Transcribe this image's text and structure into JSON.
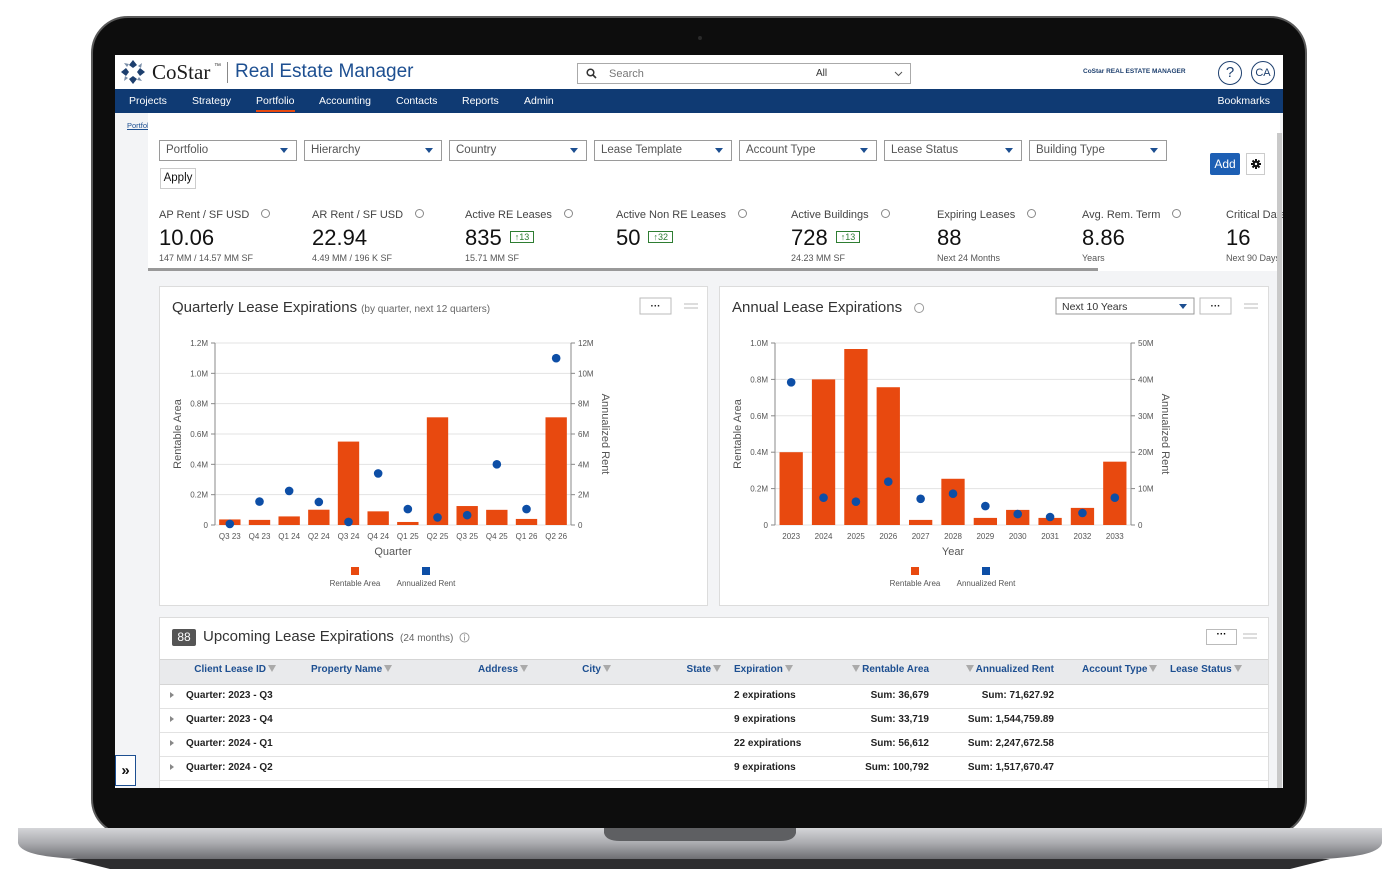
{
  "header": {
    "brand": "CoStar",
    "brand_tm": "™",
    "product": "Real Estate Manager",
    "search_placeholder": "Search",
    "search_scope": "All",
    "logo_small": "CoStar REAL ESTATE MANAGER",
    "help": "?",
    "avatar": "CA"
  },
  "nav": {
    "items": [
      "Projects",
      "Strategy",
      "Portfolio",
      "Accounting",
      "Contacts",
      "Reports",
      "Admin"
    ],
    "active": 2,
    "right": "Bookmarks"
  },
  "breadcrumb": "Portfolio Home",
  "filters": {
    "items": [
      "Portfolio",
      "Hierarchy",
      "Country",
      "Lease Template",
      "Account Type",
      "Lease Status",
      "Building Type"
    ],
    "apply": "Apply",
    "add": "Add"
  },
  "kpis": [
    {
      "label": "AP Rent / SF USD",
      "value": 10.06,
      "sub": "147 MM / 14.57 MM SF"
    },
    {
      "label": "AR Rent / SF USD",
      "value": 22.94,
      "sub": "4.49 MM / 196 K SF"
    },
    {
      "label": "Active RE Leases",
      "value": 835,
      "badge": "↑13",
      "sub": "15.71 MM SF"
    },
    {
      "label": "Active Non RE Leases",
      "value": 50,
      "badge": "↑32"
    },
    {
      "label": "Active Buildings",
      "value": 728,
      "badge": "↑13",
      "sub": "24.23 MM SF"
    },
    {
      "label": "Expiring Leases",
      "value": 88,
      "sub": "Next 24 Months"
    },
    {
      "label": "Avg. Rem. Term",
      "value": 8.86,
      "sub": "Years"
    },
    {
      "label": "Critical Dates",
      "value": 16,
      "sub": "Next 90 Days"
    }
  ],
  "chart_data": [
    {
      "type": "bar",
      "title": "Quarterly Lease Expirations",
      "subtitle": "(by quarter, next 12 quarters)",
      "x_label": "Quarter",
      "y_label": "Rentable Area",
      "y2_label": "Annualized Rent",
      "categories": [
        "Q3 23",
        "Q4 23",
        "Q1 24",
        "Q2 24",
        "Q3 24",
        "Q4 24",
        "Q1 25",
        "Q2 25",
        "Q3 25",
        "Q4 25",
        "Q1 26",
        "Q2 26"
      ],
      "series": [
        {
          "name": "Rentable Area",
          "type": "bar",
          "color": "#e8490f",
          "values": [
            36679,
            33719,
            56612,
            100792,
            550000,
            90000,
            20000,
            710000,
            125000,
            100000,
            40000,
            710000
          ]
        },
        {
          "name": "Annualized Rent",
          "type": "scatter",
          "color": "#0d4ea6",
          "axis": "y2",
          "values": [
            71627.92,
            1544759.89,
            2247672.58,
            1517670.47,
            200000,
            3400000,
            1050000,
            500000,
            650000,
            4000000,
            1050000,
            11000000
          ]
        }
      ],
      "ylim": [
        0,
        1200000
      ],
      "yticks": [
        0,
        {
          "value": 200000,
          "label": "0.2M"
        },
        {
          "value": 400000,
          "label": "0.4M"
        },
        {
          "value": 600000,
          "label": "0.6M"
        },
        {
          "value": 800000,
          "label": "0.8M"
        },
        {
          "value": 1000000,
          "label": "1.0M"
        },
        {
          "value": 1200000,
          "label": "1.2M"
        }
      ],
      "y2lim": [
        0,
        12000000
      ],
      "y2ticks": [
        0,
        {
          "value": 2000000,
          "label": "2M"
        },
        {
          "value": 4000000,
          "label": "4M"
        },
        {
          "value": 6000000,
          "label": "6M"
        },
        {
          "value": 8000000,
          "label": "8M"
        },
        {
          "value": 10000000,
          "label": "10M"
        },
        {
          "value": 12000000,
          "label": "12M"
        }
      ],
      "grid": true
    },
    {
      "type": "bar",
      "title": "Annual Lease Expirations",
      "period_select": "Next 10 Years",
      "x_label": "Year",
      "y_label": "Rentable Area",
      "y2_label": "Annualized Rent",
      "categories": [
        "2023",
        "2024",
        "2025",
        "2026",
        "2027",
        "2028",
        "2029",
        "2030",
        "2031",
        "2032",
        "2033"
      ],
      "series": [
        {
          "name": "Rentable Area",
          "type": "bar",
          "color": "#e8490f",
          "values": [
            400000,
            800000,
            967000,
            757000,
            28000,
            254000,
            39000,
            83000,
            39000,
            94000,
            348000
          ]
        },
        {
          "name": "Annualized Rent",
          "type": "scatter",
          "color": "#0d4ea6",
          "axis": "y2",
          "values": [
            39200000,
            7500000,
            6400000,
            11900000,
            7200000,
            8600000,
            5200000,
            3000000,
            2200000,
            3300000,
            7500000
          ]
        }
      ],
      "ylim": [
        0,
        1000000
      ],
      "yticks": [
        0,
        {
          "value": 200000,
          "label": "0.2M"
        },
        {
          "value": 400000,
          "label": "0.4M"
        },
        {
          "value": 600000,
          "label": "0.6M"
        },
        {
          "value": 800000,
          "label": "0.8M"
        },
        {
          "value": 1000000,
          "label": "1.0M"
        }
      ],
      "y2lim": [
        0,
        50000000
      ],
      "y2ticks": [
        0,
        {
          "value": 10000000,
          "label": "10M"
        },
        {
          "value": 20000000,
          "label": "20M"
        },
        {
          "value": 30000000,
          "label": "30M"
        },
        {
          "value": 40000000,
          "label": "40M"
        },
        {
          "value": 50000000,
          "label": "50M"
        }
      ],
      "grid": true
    }
  ],
  "table": {
    "count": 88,
    "title": "Upcoming Lease Expirations",
    "subtitle": "(24 months)",
    "columns": [
      "Client Lease ID",
      "Property Name",
      "Address",
      "City",
      "State",
      "Expiration",
      "Rentable Area",
      "Annualized Rent",
      "Account Type",
      "Lease Status"
    ],
    "rows": [
      [
        "Quarter: 2023 - Q3",
        "2 expirations",
        "Sum: 36,679",
        "Sum: 71,627.92"
      ],
      [
        "Quarter: 2023 - Q4",
        "9 expirations",
        "Sum: 33,719",
        "Sum: 1,544,759.89"
      ],
      [
        "Quarter: 2024 - Q1",
        "22 expirations",
        "Sum: 56,612",
        "Sum: 2,247,672.58"
      ],
      [
        "Quarter: 2024 - Q2",
        "9 expirations",
        "Sum: 100,792",
        "Sum: 1,517,670.47"
      ]
    ]
  }
}
